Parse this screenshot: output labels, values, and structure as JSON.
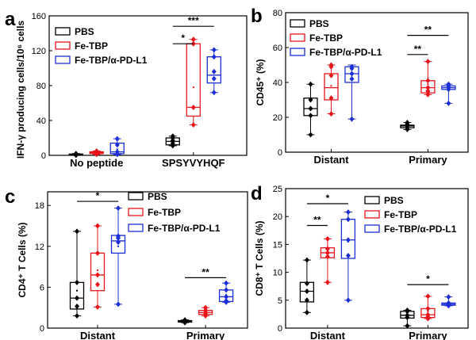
{
  "colors": {
    "PBS": "#000000",
    "Fe-TBP": "#e8141b",
    "Fe-TBP/α-PD-L1": "#1c2fd6"
  },
  "legend": [
    "PBS",
    "Fe-TBP",
    "Fe-TBP/α-PD-L1"
  ],
  "chart_data": [
    {
      "panel": "a",
      "type": "box",
      "ylabel": "IFN-γ producing cells/10⁶ cells",
      "ylim": [
        0,
        160
      ],
      "yticks": [
        0,
        40,
        80,
        120,
        160
      ],
      "categories": [
        "No peptide",
        "SPSYVYHQF"
      ],
      "series": [
        {
          "name": "PBS",
          "groups": [
            {
              "q1": 0.5,
              "median": 1,
              "q3": 1.5,
              "min": 0,
              "max": 2,
              "mean": 1,
              "points": [
                0,
                1,
                2
              ]
            },
            {
              "q1": 12,
              "median": 16,
              "q3": 20,
              "min": 11,
              "max": 22,
              "mean": 16,
              "points": [
                11,
                14,
                17,
                20,
                22
              ]
            }
          ]
        },
        {
          "name": "Fe-TBP",
          "groups": [
            {
              "q1": 2,
              "median": 3,
              "q3": 4,
              "min": 1,
              "max": 5,
              "mean": 3,
              "points": [
                1,
                3,
                4,
                5
              ]
            },
            {
              "q1": 45,
              "median": 55,
              "q3": 128,
              "min": 35,
              "max": 133,
              "mean": 78,
              "points": [
                35,
                55,
                128,
                133
              ]
            }
          ]
        },
        {
          "name": "Fe-TBP/α-PD-L1",
          "groups": [
            {
              "q1": 2,
              "median": 4,
              "q3": 14,
              "min": 1,
              "max": 19,
              "mean": 7,
              "points": [
                1,
                4,
                12,
                19
              ]
            },
            {
              "q1": 83,
              "median": 92,
              "q3": 113,
              "min": 72,
              "max": 121,
              "mean": 95,
              "points": [
                72,
                88,
                96,
                113,
                121
              ]
            }
          ]
        }
      ],
      "significance": [
        {
          "label": "*",
          "category": 1,
          "from": 0,
          "to": 1,
          "y": 128
        },
        {
          "label": "***",
          "category": 1,
          "from": 0,
          "to": 2,
          "y": 148
        }
      ]
    },
    {
      "panel": "b",
      "type": "box",
      "ylabel": "CD45⁺ (%)",
      "ylim": [
        0,
        80
      ],
      "yticks": [
        0,
        20,
        40,
        60,
        80
      ],
      "categories": [
        "Distant",
        "Primary"
      ],
      "series": [
        {
          "name": "PBS",
          "groups": [
            {
              "q1": 21,
              "median": 25,
              "q3": 31,
              "min": 10,
              "max": 39,
              "mean": 25,
              "points": [
                10,
                21,
                25,
                30,
                39
              ]
            },
            {
              "q1": 14,
              "median": 15,
              "q3": 15.5,
              "min": 13,
              "max": 17,
              "mean": 15,
              "points": [
                13,
                14,
                15,
                16,
                17
              ]
            }
          ]
        },
        {
          "name": "Fe-TBP",
          "groups": [
            {
              "q1": 30,
              "median": 37,
              "q3": 45,
              "min": 22,
              "max": 50,
              "mean": 38,
              "points": [
                22,
                31,
                44,
                49,
                50
              ]
            },
            {
              "q1": 34,
              "median": 37,
              "q3": 41,
              "min": 33,
              "max": 52,
              "mean": 39,
              "points": [
                33,
                35,
                37,
                41,
                52
              ]
            }
          ]
        },
        {
          "name": "Fe-TBP/α-PD-L1",
          "groups": [
            {
              "q1": 40,
              "median": 45,
              "q3": 49,
              "min": 19,
              "max": 50,
              "mean": 43,
              "points": [
                19,
                42,
                45,
                48,
                49
              ]
            },
            {
              "q1": 36,
              "median": 37,
              "q3": 38,
              "min": 28,
              "max": 39,
              "mean": 36,
              "points": [
                28,
                36,
                37,
                38,
                39
              ]
            }
          ]
        }
      ],
      "significance": [
        {
          "label": "**",
          "category": 1,
          "from": 0,
          "to": 1,
          "y": 56
        },
        {
          "label": "**",
          "category": 1,
          "from": 0,
          "to": 2,
          "y": 67
        }
      ]
    },
    {
      "panel": "c",
      "type": "box",
      "ylabel": "CD4⁺ T Cells (%)",
      "ylim": [
        0,
        20
      ],
      "yticks": [
        0,
        6,
        12,
        18
      ],
      "categories": [
        "Distant",
        "Primary"
      ],
      "series": [
        {
          "name": "PBS",
          "groups": [
            {
              "q1": 2.8,
              "median": 4.4,
              "q3": 6.7,
              "min": 1.8,
              "max": 14.2,
              "mean": 5.5,
              "points": [
                1.8,
                3.2,
                4.4,
                6.7,
                14.2
              ]
            },
            {
              "q1": 0.9,
              "median": 1.0,
              "q3": 1.1,
              "min": 0.8,
              "max": 1.2,
              "mean": 1.0,
              "points": [
                0.8,
                0.9,
                1.0,
                1.1,
                1.2
              ]
            }
          ]
        },
        {
          "name": "Fe-TBP",
          "groups": [
            {
              "q1": 5.5,
              "median": 7.8,
              "q3": 11.0,
              "min": 3.1,
              "max": 15.0,
              "mean": 8.5,
              "points": [
                3.1,
                6.4,
                7.8,
                11.0,
                15.0
              ]
            },
            {
              "q1": 2.0,
              "median": 2.3,
              "q3": 2.6,
              "min": 1.8,
              "max": 3.0,
              "mean": 2.3,
              "points": [
                1.8,
                2.1,
                2.3,
                2.6,
                3.0
              ]
            }
          ]
        },
        {
          "name": "Fe-TBP/α-PD-L1",
          "groups": [
            {
              "q1": 11.0,
              "median": 12.8,
              "q3": 13.6,
              "min": 3.5,
              "max": 17.6,
              "mean": 12.0,
              "points": [
                3.5,
                12.6,
                13.2,
                13.5,
                17.6
              ]
            },
            {
              "q1": 3.9,
              "median": 4.6,
              "q3": 5.6,
              "min": 3.8,
              "max": 6.6,
              "mean": 4.9,
              "points": [
                3.8,
                4.0,
                4.6,
                5.6,
                6.6
              ]
            }
          ]
        }
      ],
      "significance": [
        {
          "label": "*",
          "category": 0,
          "from": 0,
          "to": 2,
          "y": 18.6
        },
        {
          "label": "**",
          "category": 1,
          "from": 0,
          "to": 2,
          "y": 7.4
        }
      ]
    },
    {
      "panel": "d",
      "type": "box",
      "ylabel": "CD8⁺ T Cells (%)",
      "ylim": [
        0,
        25
      ],
      "yticks": [
        0,
        5,
        10,
        15,
        20,
        25
      ],
      "categories": [
        "Distant",
        "Primary"
      ],
      "series": [
        {
          "name": "PBS",
          "groups": [
            {
              "q1": 4.7,
              "median": 6.6,
              "q3": 8.2,
              "min": 2.8,
              "max": 12.2,
              "mean": 6.8,
              "points": [
                2.8,
                5.0,
                6.6,
                8.0,
                12.2
              ]
            },
            {
              "q1": 1.8,
              "median": 2.3,
              "q3": 3.0,
              "min": 0.4,
              "max": 3.2,
              "mean": 2.2,
              "points": [
                0.4,
                1.9,
                2.3,
                3.0,
                3.2
              ]
            }
          ]
        },
        {
          "name": "Fe-TBP",
          "groups": [
            {
              "q1": 12.6,
              "median": 13.5,
              "q3": 14.4,
              "min": 8.2,
              "max": 16.0,
              "mean": 13.0,
              "points": [
                8.2,
                12.8,
                13.5,
                14.2,
                16.0
              ]
            },
            {
              "q1": 1.9,
              "median": 2.4,
              "q3": 3.5,
              "min": 1.7,
              "max": 5.7,
              "mean": 3.0,
              "points": [
                1.7,
                2.0,
                2.4,
                3.5,
                5.7
              ]
            }
          ]
        },
        {
          "name": "Fe-TBP/α-PD-L1",
          "groups": [
            {
              "q1": 12.5,
              "median": 15.8,
              "q3": 19.5,
              "min": 5.0,
              "max": 20.8,
              "mean": 15.5,
              "points": [
                5.0,
                13.0,
                15.8,
                19.5,
                20.8
              ]
            },
            {
              "q1": 4.1,
              "median": 4.3,
              "q3": 4.5,
              "min": 4.0,
              "max": 5.6,
              "mean": 4.5,
              "points": [
                4.0,
                4.2,
                4.3,
                4.5,
                5.6
              ]
            }
          ]
        }
      ],
      "significance": [
        {
          "label": "**",
          "category": 0,
          "from": 0,
          "to": 1,
          "y": 18.4
        },
        {
          "label": "*",
          "category": 0,
          "from": 0,
          "to": 2,
          "y": 22.3
        },
        {
          "label": "*",
          "category": 1,
          "from": 0,
          "to": 2,
          "y": 7.8
        }
      ]
    }
  ]
}
